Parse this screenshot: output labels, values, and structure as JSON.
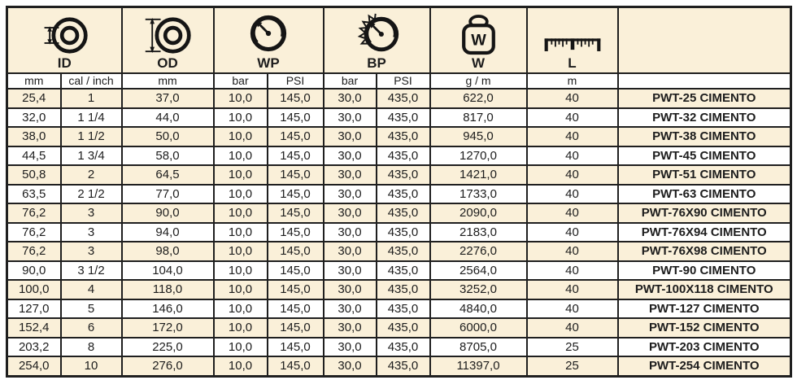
{
  "table": {
    "groups": [
      {
        "label": "ID",
        "icon": "inner-diameter-icon"
      },
      {
        "label": "OD",
        "icon": "outer-diameter-icon"
      },
      {
        "label": "WP",
        "icon": "working-pressure-gauge-icon"
      },
      {
        "label": "BP",
        "icon": "burst-pressure-gauge-icon"
      },
      {
        "label": "W",
        "icon": "weight-icon"
      },
      {
        "label": "L",
        "icon": "ruler-icon"
      },
      {
        "label": "",
        "icon": "none"
      }
    ],
    "weight_icon_letter": "W",
    "units": [
      "mm",
      "cal / inch",
      "mm",
      "bar",
      "PSI",
      "bar",
      "PSI",
      "g / m",
      "m",
      ""
    ],
    "rows": [
      [
        "25,4",
        "1",
        "37,0",
        "10,0",
        "145,0",
        "30,0",
        "435,0",
        "622,0",
        "40",
        "PWT-25 CIMENTO"
      ],
      [
        "32,0",
        "1 1/4",
        "44,0",
        "10,0",
        "145,0",
        "30,0",
        "435,0",
        "817,0",
        "40",
        "PWT-32 CIMENTO"
      ],
      [
        "38,0",
        "1 1/2",
        "50,0",
        "10,0",
        "145,0",
        "30,0",
        "435,0",
        "945,0",
        "40",
        "PWT-38 CIMENTO"
      ],
      [
        "44,5",
        "1 3/4",
        "58,0",
        "10,0",
        "145,0",
        "30,0",
        "435,0",
        "1270,0",
        "40",
        "PWT-45 CIMENTO"
      ],
      [
        "50,8",
        "2",
        "64,5",
        "10,0",
        "145,0",
        "30,0",
        "435,0",
        "1421,0",
        "40",
        "PWT-51 CIMENTO"
      ],
      [
        "63,5",
        "2 1/2",
        "77,0",
        "10,0",
        "145,0",
        "30,0",
        "435,0",
        "1733,0",
        "40",
        "PWT-63 CIMENTO"
      ],
      [
        "76,2",
        "3",
        "90,0",
        "10,0",
        "145,0",
        "30,0",
        "435,0",
        "2090,0",
        "40",
        "PWT-76X90 CIMENTO"
      ],
      [
        "76,2",
        "3",
        "94,0",
        "10,0",
        "145,0",
        "30,0",
        "435,0",
        "2183,0",
        "40",
        "PWT-76X94 CIMENTO"
      ],
      [
        "76,2",
        "3",
        "98,0",
        "10,0",
        "145,0",
        "30,0",
        "435,0",
        "2276,0",
        "40",
        "PWT-76X98 CIMENTO"
      ],
      [
        "90,0",
        "3 1/2",
        "104,0",
        "10,0",
        "145,0",
        "30,0",
        "435,0",
        "2564,0",
        "40",
        "PWT-90 CIMENTO"
      ],
      [
        "100,0",
        "4",
        "118,0",
        "10,0",
        "145,0",
        "30,0",
        "435,0",
        "3252,0",
        "40",
        "PWT-100X118 CIMENTO"
      ],
      [
        "127,0",
        "5",
        "146,0",
        "10,0",
        "145,0",
        "30,0",
        "435,0",
        "4840,0",
        "40",
        "PWT-127 CIMENTO"
      ],
      [
        "152,4",
        "6",
        "172,0",
        "10,0",
        "145,0",
        "30,0",
        "435,0",
        "6000,0",
        "40",
        "PWT-152 CIMENTO"
      ],
      [
        "203,2",
        "8",
        "225,0",
        "10,0",
        "145,0",
        "30,0",
        "435,0",
        "8705,0",
        "25",
        "PWT-203 CIMENTO"
      ],
      [
        "254,0",
        "10",
        "276,0",
        "10,0",
        "145,0",
        "30,0",
        "435,0",
        "11397,0",
        "25",
        "PWT-254 CIMENTO"
      ]
    ]
  },
  "colors": {
    "row_alt": "#faf0d9",
    "row_base": "#ffffff",
    "border": "#1f1f1f",
    "text": "#1d1d1d"
  }
}
